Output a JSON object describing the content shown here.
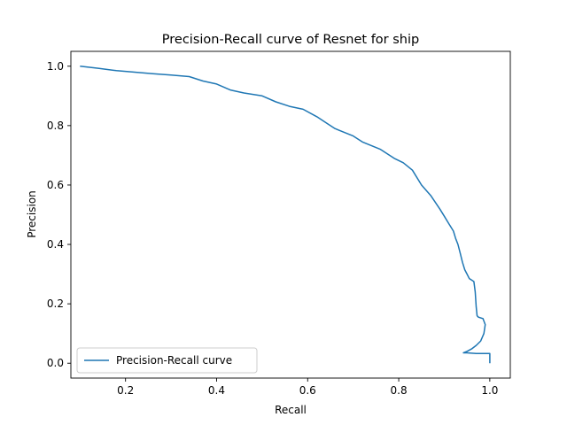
{
  "chart_data": {
    "type": "line",
    "title": "Precision-Recall curve of Resnet for ship",
    "xlabel": "Recall",
    "ylabel": "Precision",
    "xlim": [
      0.08,
      1.045
    ],
    "ylim": [
      -0.05,
      1.05
    ],
    "xticks": [
      0.2,
      0.4,
      0.6,
      0.8,
      1.0
    ],
    "xtick_labels": [
      "0.2",
      "0.4",
      "0.6",
      "0.8",
      "1.0"
    ],
    "yticks": [
      0.0,
      0.2,
      0.4,
      0.6,
      0.8,
      1.0
    ],
    "ytick_labels": [
      "0.0",
      "0.2",
      "0.4",
      "0.6",
      "0.8",
      "1.0"
    ],
    "legend_position": "lower-left",
    "series": [
      {
        "name": "Precision-Recall curve",
        "color": "#1f77b4",
        "x": [
          0.1,
          0.14,
          0.18,
          0.22,
          0.26,
          0.3,
          0.34,
          0.37,
          0.4,
          0.43,
          0.46,
          0.5,
          0.53,
          0.56,
          0.59,
          0.62,
          0.64,
          0.66,
          0.7,
          0.72,
          0.76,
          0.79,
          0.81,
          0.83,
          0.85,
          0.87,
          0.89,
          0.9,
          0.91,
          0.92,
          0.925,
          0.93,
          0.935,
          0.94,
          0.945,
          0.95,
          0.955,
          0.96,
          0.965,
          0.968,
          0.97,
          0.972,
          0.975,
          0.985,
          0.99,
          0.987,
          0.98,
          0.97,
          0.96,
          0.95,
          0.942,
          0.95,
          0.97,
          0.99,
          1.0,
          1.0
        ],
        "y": [
          1.0,
          0.993,
          0.985,
          0.98,
          0.975,
          0.97,
          0.965,
          0.95,
          0.94,
          0.92,
          0.91,
          0.9,
          0.88,
          0.865,
          0.855,
          0.83,
          0.81,
          0.79,
          0.765,
          0.745,
          0.72,
          0.69,
          0.675,
          0.65,
          0.6,
          0.565,
          0.52,
          0.495,
          0.47,
          0.445,
          0.42,
          0.4,
          0.37,
          0.34,
          0.315,
          0.3,
          0.285,
          0.28,
          0.275,
          0.24,
          0.19,
          0.16,
          0.155,
          0.15,
          0.13,
          0.1,
          0.075,
          0.06,
          0.048,
          0.04,
          0.035,
          0.035,
          0.033,
          0.033,
          0.033,
          0.0
        ]
      }
    ]
  }
}
